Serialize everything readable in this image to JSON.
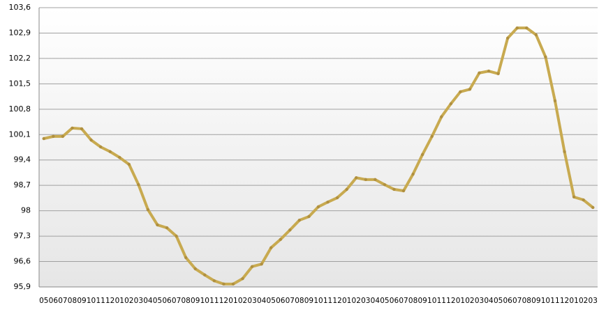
{
  "chart_data": {
    "type": "line",
    "categories": [
      "05",
      "06",
      "07",
      "08",
      "09",
      "10",
      "11",
      "12",
      "01",
      "02",
      "03",
      "04",
      "05",
      "06",
      "07",
      "08",
      "09",
      "10",
      "11",
      "12",
      "01",
      "02",
      "03",
      "04",
      "05",
      "06",
      "07",
      "08",
      "09",
      "10",
      "11",
      "12",
      "01",
      "02",
      "03",
      "04",
      "05",
      "06",
      "07",
      "08",
      "09",
      "10",
      "11",
      "12",
      "01",
      "02",
      "03",
      "04",
      "05",
      "06",
      "07",
      "08",
      "09",
      "10",
      "11",
      "12",
      "01",
      "02",
      "03"
    ],
    "series": [
      {
        "color": "#c8aa50",
        "values": [
          99.99,
          100.05,
          100.05,
          100.28,
          100.26,
          99.95,
          99.76,
          99.63,
          99.47,
          99.28,
          98.72,
          98.03,
          97.61,
          97.53,
          97.3,
          96.71,
          96.4,
          96.23,
          96.07,
          95.98,
          95.98,
          96.13,
          96.46,
          96.53,
          96.98,
          97.21,
          97.47,
          97.74,
          97.84,
          98.11,
          98.24,
          98.36,
          98.59,
          98.91,
          98.86,
          98.86,
          98.72,
          98.59,
          98.55,
          99.01,
          99.55,
          100.05,
          100.59,
          100.95,
          101.28,
          101.35,
          101.8,
          101.85,
          101.78,
          102.76,
          103.04,
          103.04,
          102.85,
          102.24,
          101.03,
          99.63,
          98.38,
          98.3,
          98.09
        ]
      }
    ],
    "ylim": [
      95.9,
      103.6
    ],
    "yticks": [
      {
        "value": 95.9,
        "label": "95,9"
      },
      {
        "value": 96.6,
        "label": "96,6"
      },
      {
        "value": 97.3,
        "label": "97,3"
      },
      98,
      {
        "value": 98.7,
        "label": "98,7"
      },
      {
        "value": 99.4,
        "label": "99,4"
      },
      {
        "value": 100.1,
        "label": "100,1"
      },
      {
        "value": 100.8,
        "label": "100,8"
      },
      {
        "value": 101.5,
        "label": "101,5"
      },
      {
        "value": 102.2,
        "label": "102,2"
      },
      {
        "value": 102.9,
        "label": "102,9"
      },
      {
        "value": 103.6,
        "label": "103,6"
      }
    ],
    "grid": true
  }
}
